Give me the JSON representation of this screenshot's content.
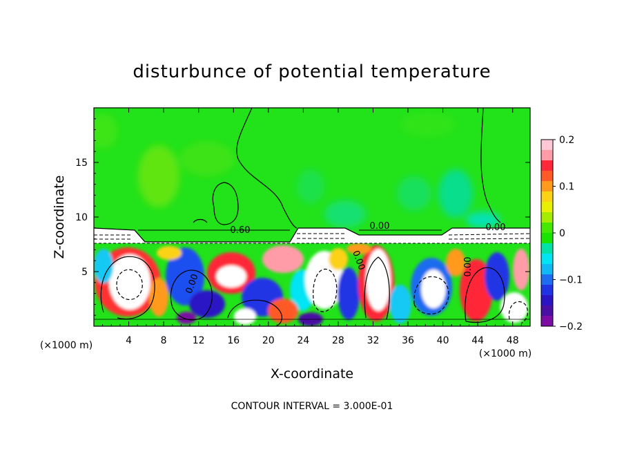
{
  "chart_data": {
    "type": "heatmap",
    "title": "disturbunce of potential temperature",
    "xlabel": "X-coordinate",
    "ylabel": "Z-coordinate",
    "x_unit_note": "(×1000 m)",
    "z_unit_note": "(×1000 m)",
    "xlim": [
      0,
      50
    ],
    "ylim": [
      0,
      20
    ],
    "x_ticks": [
      4,
      8,
      12,
      16,
      20,
      24,
      28,
      32,
      36,
      40,
      44,
      48
    ],
    "y_ticks": [
      5,
      10,
      15
    ],
    "colorbar": {
      "min": -0.2,
      "max": 0.2,
      "ticks": [
        0.2,
        0.1,
        0,
        -0.1,
        -0.2
      ],
      "tick_labels": [
        "0.2",
        "0.1",
        "0",
        "−0.1",
        "−0.2"
      ],
      "colors": [
        "#ffc8d4",
        "#ff9ca8",
        "#ff2838",
        "#ff5a28",
        "#ff9a1c",
        "#fcd214",
        "#e8f000",
        "#a4ec00",
        "#44e800",
        "#18e400",
        "#00e2a6",
        "#00e4f4",
        "#10b8f4",
        "#1e6cf0",
        "#2034e4",
        "#2a14c4",
        "#4a10a4",
        "#7c0ca4"
      ]
    },
    "contour_labels": [
      "0.60",
      "0.00",
      "0.00",
      "0.00",
      "0.00",
      "0.00"
    ],
    "contour_interval_text": "CONTOUR INTERVAL = 3.000E-01",
    "field_summary": {
      "upper_layer": "near-zero disturbance (green) above z ≈ 9",
      "inversion_band": "strong gradient with dense contours around z ≈ 8–9",
      "lower_layer": "turbulent eddies with values from −0.2 to 0.2 below z ≈ 8"
    }
  },
  "colors": {
    "background_field": "#22e21a",
    "frame": "#000000",
    "page": "#ffffff"
  }
}
